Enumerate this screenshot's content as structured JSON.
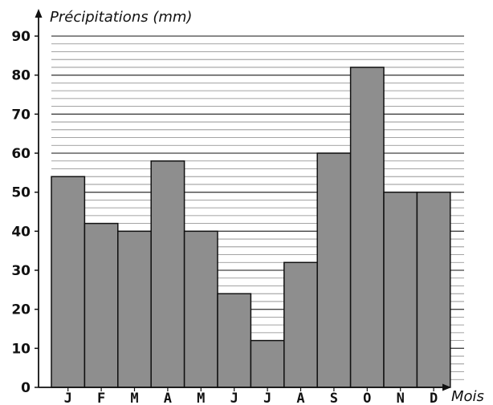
{
  "chart_data": {
    "type": "bar",
    "ylabel": "Précipitations (mm)",
    "xlabel": "Mois",
    "categories": [
      "J",
      "F",
      "M",
      "A",
      "M",
      "J",
      "J",
      "A",
      "S",
      "O",
      "N",
      "D"
    ],
    "values": [
      54,
      42,
      40,
      58,
      40,
      24,
      12,
      32,
      60,
      82,
      50,
      50
    ],
    "ylim": [
      0,
      90
    ],
    "yticks": [
      "0",
      "10",
      "20",
      "30",
      "40",
      "50",
      "60",
      "70",
      "80",
      "90"
    ],
    "grid": true,
    "colors": {
      "bar_fill": "#8e8e8e",
      "bar_stroke": "#111111",
      "grid": "#222222"
    }
  }
}
